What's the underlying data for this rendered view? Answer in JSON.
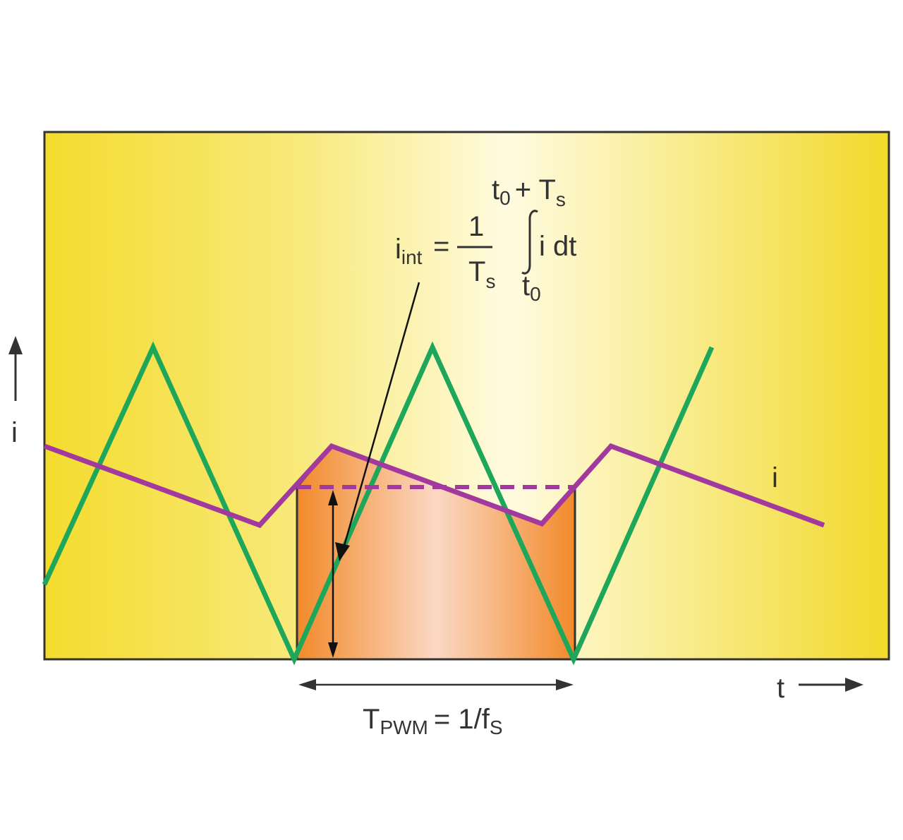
{
  "colors": {
    "background": "#ffffff",
    "plot_yellow": "#f4dc2e",
    "plot_center": "#fffbe0",
    "frame": "#333333",
    "triangle_carrier": "#1ea75a",
    "current_i": "#a2399e",
    "integral_area_edge": "#f28a2a",
    "integral_area_center": "#fbd8c4",
    "text": "#333333"
  },
  "labels": {
    "y_axis": "i",
    "x_axis": "t",
    "current_curve": "i",
    "formula_lhs_base": "i",
    "formula_lhs_sub": "int",
    "formula_eq": "=",
    "formula_numerator": "1",
    "formula_den_base": "T",
    "formula_den_sub": "s",
    "formula_upper_base": "t",
    "formula_upper_sub": "0",
    "formula_upper_plus": "+ T",
    "formula_upper_sub2": "s",
    "formula_integrand": "i dt",
    "formula_lower_base": "t",
    "formula_lower_sub": "0",
    "period_base": "T",
    "period_sub": "PWM",
    "period_rest": "= 1/f",
    "period_sub2": "S"
  },
  "icons": {
    "y_axis_arrow": "arrow-up-icon",
    "x_axis_arrow": "arrow-right-icon",
    "integral_sign": "integral-sign-icon"
  }
}
